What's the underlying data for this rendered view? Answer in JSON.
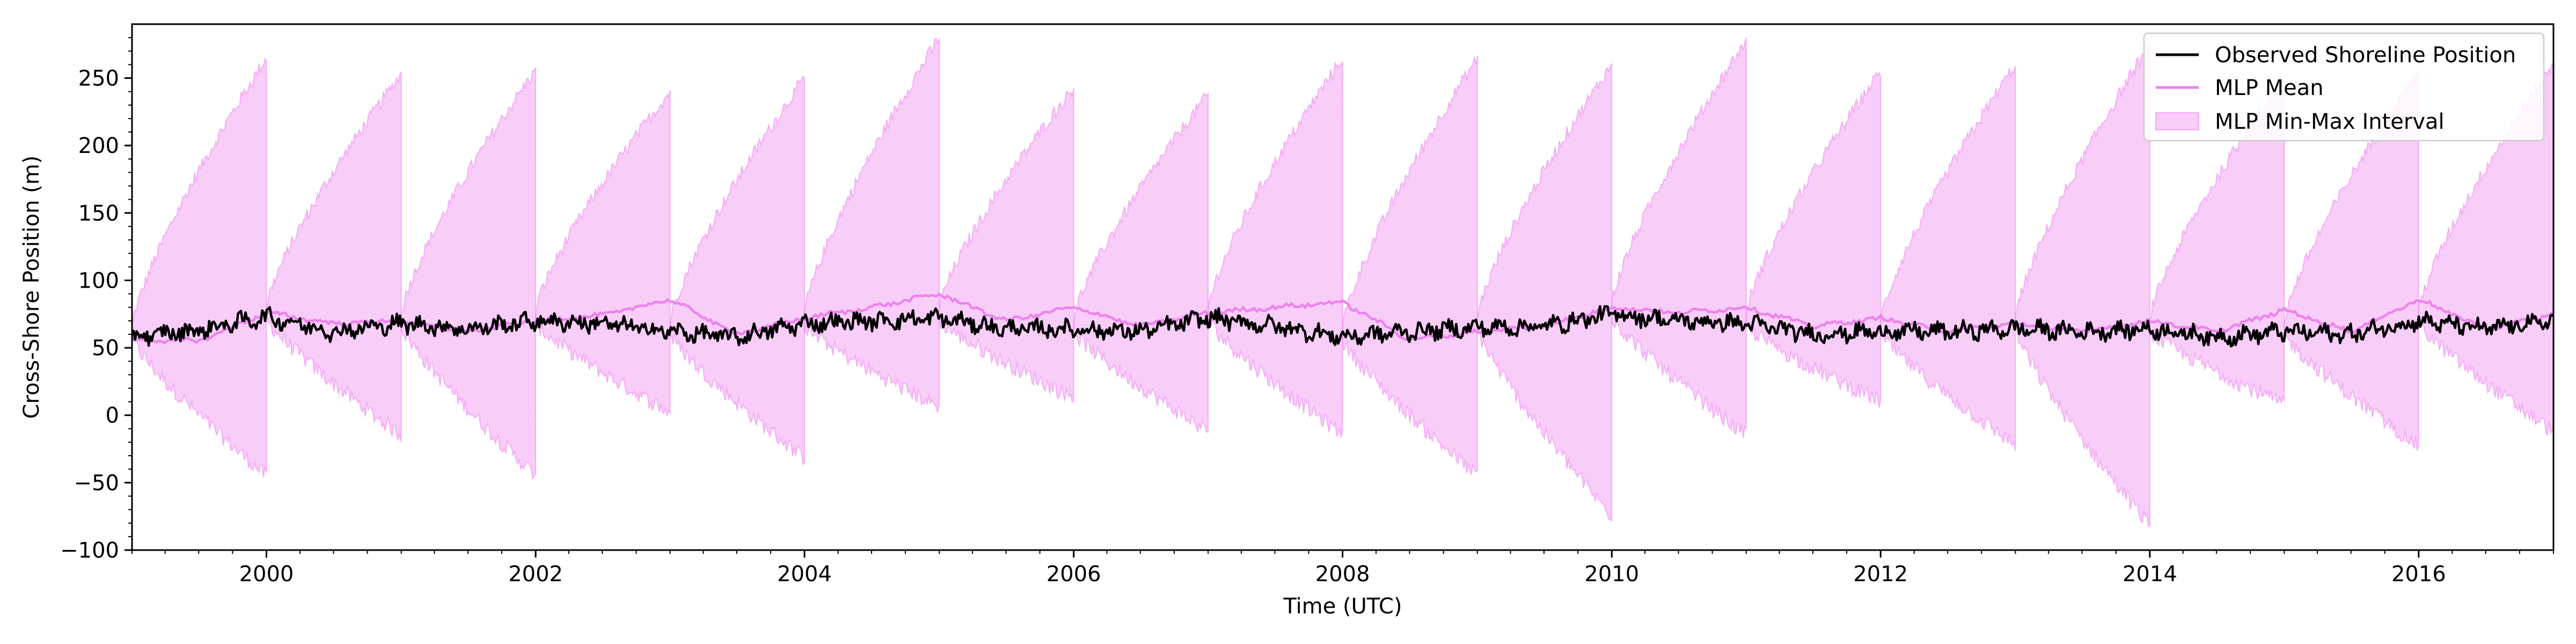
{
  "chart_data": {
    "type": "line",
    "title": "",
    "xlabel": "Time (UTC)",
    "ylabel": "Cross-Shore Position (m)",
    "xlim": [
      "1999-01-01",
      "2017-01-01"
    ],
    "ylim": [
      -100,
      290
    ],
    "x_ticks": [
      "2000",
      "2002",
      "2004",
      "2006",
      "2008",
      "2010",
      "2012",
      "2014",
      "2016"
    ],
    "y_ticks": [
      -100,
      -50,
      0,
      50,
      100,
      150,
      200,
      250
    ],
    "grid": false,
    "legend_position": "top-right",
    "forecast_windows": [
      {
        "start": "1999-01-01",
        "end": "2000-01-01",
        "max_end": 265,
        "min_end": -45
      },
      {
        "start": "2000-01-01",
        "end": "2001-01-01",
        "max_end": 253,
        "min_end": -15
      },
      {
        "start": "2001-01-01",
        "end": "2002-01-01",
        "max_end": 256,
        "min_end": -45
      },
      {
        "start": "2002-01-01",
        "end": "2003-01-01",
        "max_end": 240,
        "min_end": 2
      },
      {
        "start": "2003-01-01",
        "end": "2004-01-01",
        "max_end": 250,
        "min_end": -32
      },
      {
        "start": "2004-01-01",
        "end": "2005-01-01",
        "max_end": 280,
        "min_end": 6
      },
      {
        "start": "2005-01-01",
        "end": "2006-01-01",
        "max_end": 243,
        "min_end": 13
      },
      {
        "start": "2006-01-01",
        "end": "2007-01-01",
        "max_end": 238,
        "min_end": -12
      },
      {
        "start": "2007-01-01",
        "end": "2008-01-01",
        "max_end": 265,
        "min_end": -14
      },
      {
        "start": "2008-01-01",
        "end": "2009-01-01",
        "max_end": 265,
        "min_end": -45
      },
      {
        "start": "2009-01-01",
        "end": "2010-01-01",
        "max_end": 260,
        "min_end": -75
      },
      {
        "start": "2010-01-01",
        "end": "2011-01-01",
        "max_end": 278,
        "min_end": -15
      },
      {
        "start": "2011-01-01",
        "end": "2012-01-01",
        "max_end": 255,
        "min_end": 10
      },
      {
        "start": "2012-01-01",
        "end": "2013-01-01",
        "max_end": 260,
        "min_end": -22
      },
      {
        "start": "2013-01-01",
        "end": "2014-01-01",
        "max_end": 275,
        "min_end": -82
      },
      {
        "start": "2014-01-01",
        "end": "2015-01-01",
        "max_end": 250,
        "min_end": 8
      },
      {
        "start": "2015-01-01",
        "end": "2016-01-01",
        "max_end": 255,
        "min_end": -23
      },
      {
        "start": "2016-01-01",
        "end": "2017-01-01",
        "max_end": 260,
        "min_end": -12
      }
    ],
    "series": [
      {
        "name": "Observed Shoreline Position",
        "color": "#000000",
        "x": [
          "1999-01-01",
          "1999-07-01",
          "2000-01-01",
          "2000-07-01",
          "2001-01-01",
          "2001-07-01",
          "2002-01-01",
          "2002-07-01",
          "2003-01-01",
          "2003-07-01",
          "2004-01-01",
          "2004-07-01",
          "2005-01-01",
          "2005-07-01",
          "2006-01-01",
          "2006-07-01",
          "2007-01-01",
          "2007-07-01",
          "2008-01-01",
          "2008-07-01",
          "2009-01-01",
          "2009-07-01",
          "2010-01-01",
          "2010-07-01",
          "2011-01-01",
          "2011-07-01",
          "2012-01-01",
          "2012-07-01",
          "2013-01-01",
          "2013-07-01",
          "2014-01-01",
          "2014-07-01",
          "2015-01-01",
          "2015-07-01",
          "2016-01-01",
          "2016-07-01",
          "2017-01-01"
        ],
        "values": [
          58,
          63,
          73,
          62,
          68,
          64,
          70,
          68,
          62,
          58,
          68,
          70,
          72,
          64,
          64,
          62,
          72,
          66,
          58,
          62,
          65,
          66,
          75,
          70,
          68,
          60,
          62,
          62,
          64,
          62,
          64,
          58,
          62,
          60,
          70,
          64,
          70
        ]
      },
      {
        "name": "MLP Mean",
        "color": "#ee82ee",
        "x": [
          "1999-01-01",
          "1999-07-01",
          "2000-01-01",
          "2000-07-01",
          "2001-01-01",
          "2001-07-01",
          "2002-01-01",
          "2002-07-01",
          "2003-01-01",
          "2003-07-01",
          "2004-01-01",
          "2004-07-01",
          "2005-01-01",
          "2005-07-01",
          "2006-01-01",
          "2006-07-01",
          "2007-01-01",
          "2007-07-01",
          "2008-01-01",
          "2008-07-01",
          "2009-01-01",
          "2009-07-01",
          "2010-01-01",
          "2010-07-01",
          "2011-01-01",
          "2011-07-01",
          "2012-01-01",
          "2012-07-01",
          "2013-01-01",
          "2013-07-01",
          "2014-01-01",
          "2014-07-01",
          "2015-01-01",
          "2015-07-01",
          "2016-01-01",
          "2016-07-01",
          "2017-01-01"
        ],
        "values": [
          56,
          55,
          76,
          68,
          70,
          62,
          70,
          74,
          86,
          60,
          72,
          80,
          90,
          70,
          80,
          66,
          76,
          80,
          84,
          56,
          62,
          66,
          80,
          76,
          80,
          66,
          72,
          62,
          68,
          62,
          70,
          62,
          78,
          62,
          86,
          64,
          75
        ]
      },
      {
        "name": "MLP Min-Max Interval",
        "color": "#ee82ee",
        "fill_opacity": 0.4
      }
    ]
  }
}
